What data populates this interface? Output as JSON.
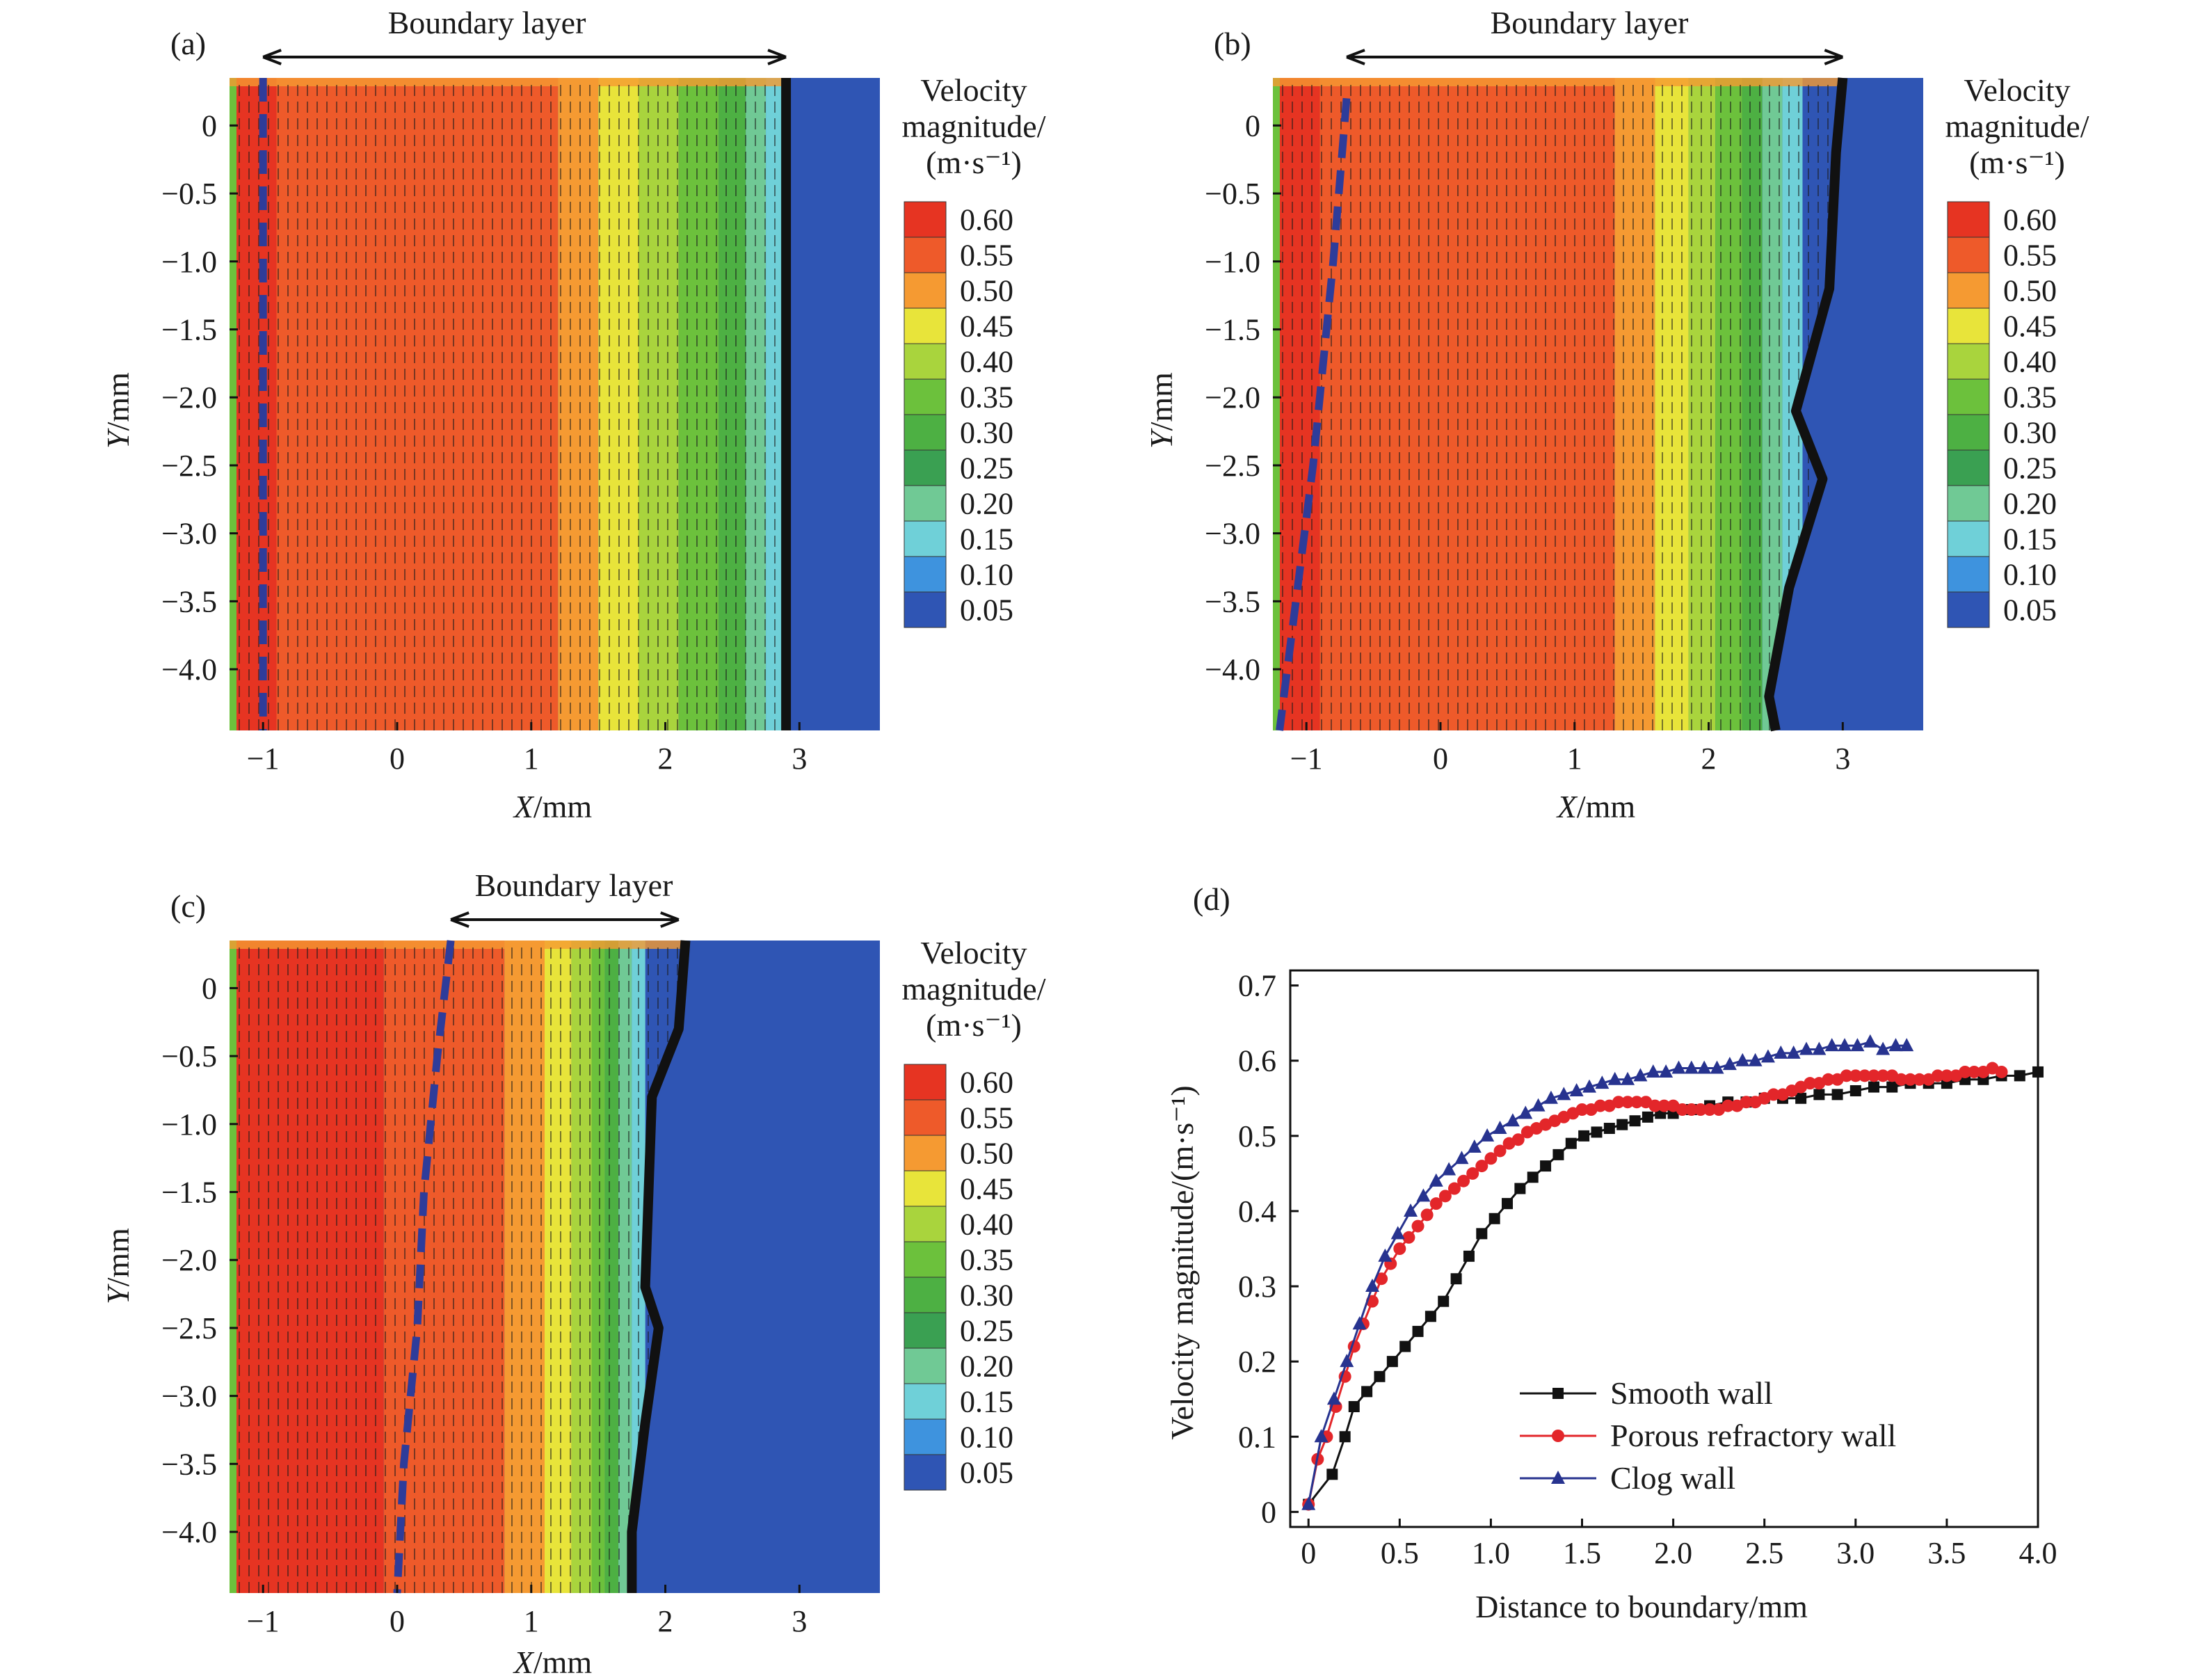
{
  "colorbar": {
    "title_lines": [
      "Velocity",
      "magnitude/",
      "(m·s⁻¹)"
    ],
    "levels": [
      "0.60",
      "0.55",
      "0.50",
      "0.45",
      "0.40",
      "0.35",
      "0.30",
      "0.25",
      "0.20",
      "0.15",
      "0.10",
      "0.05"
    ],
    "colors": [
      "#e63422",
      "#ee5a2a",
      "#f59a32",
      "#e8e43a",
      "#a9d43d",
      "#6cc13c",
      "#4db043",
      "#3aa052",
      "#70c995",
      "#6fd0d8",
      "#3e93de",
      "#2f55b4"
    ]
  },
  "contour_panels": [
    {
      "label": "(a)",
      "boundary_label": "Boundary layer",
      "xlabel_italic": "X",
      "xlabel_rest": "/mm",
      "ylabel_italic": "Y",
      "ylabel_rest": "/mm",
      "xticks": [
        -1,
        0,
        1,
        2,
        3
      ],
      "yticks": [
        0,
        -0.5,
        -1.0,
        -1.5,
        -2.0,
        -2.5,
        -3.0,
        -3.5,
        -4.0
      ],
      "xtick_labels": [
        "−1",
        "0",
        "1",
        "2",
        "3"
      ],
      "ytick_labels": [
        "0",
        "−0.5",
        "−1.0",
        "−1.5",
        "−2.0",
        "−2.5",
        "−3.0",
        "−3.5",
        "−4.0"
      ],
      "xlim": [
        -1.25,
        3.6
      ],
      "ylim": [
        -4.45,
        0.35
      ],
      "arrow_range": [
        -1.0,
        2.9
      ],
      "boundary_line": [
        [
          2.9,
          0.35
        ],
        [
          2.9,
          -4.45
        ]
      ],
      "inner_dashed_line": [
        [
          -1.0,
          0.35
        ],
        [
          -1.0,
          -4.45
        ]
      ],
      "color_zones": [
        {
          "x_end": -0.9,
          "color": "#e63422"
        },
        {
          "x_end": 1.2,
          "color": "#ee5a2a"
        },
        {
          "x_end": 1.5,
          "color": "#f59a32"
        },
        {
          "x_end": 1.8,
          "color": "#e8e43a"
        },
        {
          "x_end": 2.1,
          "color": "#a9d43d"
        },
        {
          "x_end": 2.4,
          "color": "#6cc13c"
        },
        {
          "x_end": 2.6,
          "color": "#4db043"
        },
        {
          "x_end": 2.75,
          "color": "#70c995"
        },
        {
          "x_end": 2.9,
          "color": "#6fd0d8"
        }
      ]
    },
    {
      "label": "(b)",
      "boundary_label": "Boundary layer",
      "xlabel_italic": "X",
      "xlabel_rest": "/mm",
      "ylabel_italic": "Y",
      "ylabel_rest": "/mm",
      "xticks": [
        -1,
        0,
        1,
        2,
        3
      ],
      "yticks": [
        0,
        -0.5,
        -1.0,
        -1.5,
        -2.0,
        -2.5,
        -3.0,
        -3.5,
        -4.0
      ],
      "xtick_labels": [
        "−1",
        "0",
        "1",
        "2",
        "3"
      ],
      "ytick_labels": [
        "0",
        "−0.5",
        "−1.0",
        "−1.5",
        "−2.0",
        "−2.5",
        "−3.0",
        "−3.5",
        "−4.0"
      ],
      "xlim": [
        -1.25,
        3.6
      ],
      "ylim": [
        -4.45,
        0.35
      ],
      "arrow_range": [
        -0.7,
        3.0
      ],
      "boundary_line": [
        [
          3.0,
          0.35
        ],
        [
          2.95,
          -0.2
        ],
        [
          2.9,
          -1.2
        ],
        [
          2.65,
          -2.1
        ],
        [
          2.85,
          -2.6
        ],
        [
          2.6,
          -3.4
        ],
        [
          2.45,
          -4.2
        ],
        [
          2.5,
          -4.45
        ]
      ],
      "inner_dashed_line": [
        [
          -0.7,
          0.2
        ],
        [
          -0.8,
          -1.0
        ],
        [
          -0.95,
          -2.5
        ],
        [
          -1.2,
          -4.45
        ]
      ],
      "color_zones": [
        {
          "x_end": -0.9,
          "color": "#e63422"
        },
        {
          "x_end": 1.3,
          "color": "#ee5a2a"
        },
        {
          "x_end": 1.6,
          "color": "#f59a32"
        },
        {
          "x_end": 1.85,
          "color": "#e8e43a"
        },
        {
          "x_end": 2.05,
          "color": "#a9d43d"
        },
        {
          "x_end": 2.25,
          "color": "#6cc13c"
        },
        {
          "x_end": 2.4,
          "color": "#4db043"
        },
        {
          "x_end": 2.55,
          "color": "#70c995"
        },
        {
          "x_end": 2.7,
          "color": "#6fd0d8"
        }
      ]
    },
    {
      "label": "(c)",
      "boundary_label": "Boundary layer",
      "xlabel_italic": "X",
      "xlabel_rest": "/mm",
      "ylabel_italic": "Y",
      "ylabel_rest": "/mm",
      "xticks": [
        -1,
        0,
        1,
        2,
        3
      ],
      "yticks": [
        0,
        -0.5,
        -1.0,
        -1.5,
        -2.0,
        -2.5,
        -3.0,
        -3.5,
        -4.0
      ],
      "xtick_labels": [
        "−1",
        "0",
        "1",
        "2",
        "3"
      ],
      "ytick_labels": [
        "0",
        "−0.5",
        "−1.0",
        "−1.5",
        "−2.0",
        "−2.5",
        "−3.0",
        "−3.5",
        "−4.0"
      ],
      "xlim": [
        -1.25,
        3.6
      ],
      "ylim": [
        -4.45,
        0.35
      ],
      "arrow_range": [
        0.4,
        2.1
      ],
      "boundary_line": [
        [
          2.15,
          0.35
        ],
        [
          2.1,
          -0.3
        ],
        [
          1.9,
          -0.8
        ],
        [
          1.85,
          -2.2
        ],
        [
          1.95,
          -2.5
        ],
        [
          1.85,
          -3.2
        ],
        [
          1.75,
          -4.0
        ],
        [
          1.75,
          -4.45
        ]
      ],
      "inner_dashed_line": [
        [
          0.4,
          0.35
        ],
        [
          0.3,
          -0.5
        ],
        [
          0.2,
          -1.5
        ],
        [
          0.15,
          -2.5
        ],
        [
          0.05,
          -3.5
        ],
        [
          0.0,
          -4.45
        ]
      ],
      "color_zones": [
        {
          "x_end": -0.1,
          "color": "#e63422"
        },
        {
          "x_end": 0.8,
          "color": "#ee5a2a"
        },
        {
          "x_end": 1.1,
          "color": "#f59a32"
        },
        {
          "x_end": 1.3,
          "color": "#e8e43a"
        },
        {
          "x_end": 1.45,
          "color": "#a9d43d"
        },
        {
          "x_end": 1.55,
          "color": "#6cc13c"
        },
        {
          "x_end": 1.65,
          "color": "#4db043"
        },
        {
          "x_end": 1.75,
          "color": "#70c995"
        },
        {
          "x_end": 1.85,
          "color": "#6fd0d8"
        }
      ]
    }
  ],
  "chart_data": {
    "type": "line",
    "label": "(d)",
    "xlabel": "Distance to boundary/mm",
    "ylabel": "Velocity magnitude/(m·s⁻¹)",
    "xlim": [
      -0.1,
      4.0
    ],
    "ylim": [
      -0.02,
      0.72
    ],
    "xticks": [
      0,
      0.5,
      1.0,
      1.5,
      2.0,
      2.5,
      3.0,
      3.5,
      4.0
    ],
    "xtick_labels": [
      "0",
      "0.5",
      "1.0",
      "1.5",
      "2.0",
      "2.5",
      "3.0",
      "3.5",
      "4.0"
    ],
    "yticks": [
      0,
      0.1,
      0.2,
      0.3,
      0.4,
      0.5,
      0.6,
      0.7
    ],
    "ytick_labels": [
      "0",
      "0.1",
      "0.2",
      "0.3",
      "0.4",
      "0.5",
      "0.6",
      "0.7"
    ],
    "legend_position": "bottom-left",
    "series": [
      {
        "name": "Smooth wall",
        "color": "#111111",
        "marker": "square",
        "x": [
          0,
          0.13,
          0.2,
          0.25,
          0.32,
          0.39,
          0.46,
          0.53,
          0.6,
          0.67,
          0.74,
          0.81,
          0.88,
          0.95,
          1.02,
          1.09,
          1.16,
          1.23,
          1.3,
          1.37,
          1.44,
          1.51,
          1.58,
          1.65,
          1.72,
          1.79,
          1.86,
          1.93,
          2.0,
          2.1,
          2.2,
          2.3,
          2.4,
          2.5,
          2.6,
          2.7,
          2.8,
          2.9,
          3.0,
          3.1,
          3.2,
          3.3,
          3.4,
          3.5,
          3.6,
          3.7,
          3.8,
          3.9,
          4.0
        ],
        "y": [
          0.01,
          0.05,
          0.1,
          0.14,
          0.16,
          0.18,
          0.2,
          0.22,
          0.24,
          0.26,
          0.28,
          0.31,
          0.34,
          0.37,
          0.39,
          0.41,
          0.43,
          0.445,
          0.46,
          0.475,
          0.49,
          0.5,
          0.505,
          0.51,
          0.515,
          0.52,
          0.525,
          0.53,
          0.53,
          0.535,
          0.54,
          0.545,
          0.545,
          0.55,
          0.55,
          0.55,
          0.555,
          0.555,
          0.56,
          0.565,
          0.565,
          0.57,
          0.57,
          0.57,
          0.575,
          0.575,
          0.58,
          0.58,
          0.585
        ]
      },
      {
        "name": "Porous refractory wall",
        "color": "#e3262a",
        "marker": "circle",
        "x": [
          0,
          0.05,
          0.1,
          0.15,
          0.2,
          0.25,
          0.3,
          0.35,
          0.4,
          0.45,
          0.5,
          0.55,
          0.6,
          0.65,
          0.7,
          0.75,
          0.8,
          0.85,
          0.9,
          0.95,
          1.0,
          1.05,
          1.1,
          1.15,
          1.2,
          1.25,
          1.3,
          1.35,
          1.4,
          1.45,
          1.5,
          1.55,
          1.6,
          1.65,
          1.7,
          1.75,
          1.8,
          1.85,
          1.9,
          1.95,
          2.0,
          2.05,
          2.1,
          2.15,
          2.2,
          2.25,
          2.3,
          2.35,
          2.4,
          2.45,
          2.5,
          2.55,
          2.6,
          2.65,
          2.7,
          2.75,
          2.8,
          2.85,
          2.9,
          2.95,
          3.0,
          3.05,
          3.1,
          3.15,
          3.2,
          3.25,
          3.3,
          3.35,
          3.4,
          3.45,
          3.5,
          3.55,
          3.6,
          3.65,
          3.7,
          3.75,
          3.8
        ],
        "y": [
          0.01,
          0.07,
          0.1,
          0.14,
          0.18,
          0.22,
          0.25,
          0.28,
          0.31,
          0.33,
          0.35,
          0.365,
          0.38,
          0.395,
          0.41,
          0.42,
          0.43,
          0.44,
          0.45,
          0.46,
          0.47,
          0.48,
          0.49,
          0.495,
          0.505,
          0.51,
          0.515,
          0.52,
          0.525,
          0.53,
          0.535,
          0.535,
          0.54,
          0.54,
          0.545,
          0.545,
          0.545,
          0.545,
          0.54,
          0.54,
          0.54,
          0.535,
          0.535,
          0.535,
          0.535,
          0.535,
          0.54,
          0.54,
          0.545,
          0.545,
          0.55,
          0.555,
          0.555,
          0.56,
          0.565,
          0.57,
          0.57,
          0.575,
          0.575,
          0.58,
          0.58,
          0.58,
          0.58,
          0.58,
          0.58,
          0.575,
          0.575,
          0.575,
          0.575,
          0.58,
          0.58,
          0.58,
          0.585,
          0.585,
          0.585,
          0.59,
          0.585
        ]
      },
      {
        "name": "Clog wall",
        "color": "#27338f",
        "marker": "triangle",
        "x": [
          0,
          0.07,
          0.14,
          0.21,
          0.28,
          0.35,
          0.42,
          0.49,
          0.56,
          0.63,
          0.7,
          0.77,
          0.84,
          0.91,
          0.98,
          1.05,
          1.12,
          1.19,
          1.26,
          1.33,
          1.4,
          1.47,
          1.54,
          1.61,
          1.68,
          1.75,
          1.82,
          1.89,
          1.96,
          2.03,
          2.1,
          2.17,
          2.24,
          2.31,
          2.38,
          2.45,
          2.52,
          2.59,
          2.66,
          2.73,
          2.8,
          2.87,
          2.94,
          3.01,
          3.08,
          3.15,
          3.22,
          3.28
        ],
        "y": [
          0.01,
          0.1,
          0.15,
          0.2,
          0.25,
          0.3,
          0.34,
          0.37,
          0.4,
          0.42,
          0.44,
          0.455,
          0.47,
          0.485,
          0.5,
          0.51,
          0.52,
          0.53,
          0.54,
          0.55,
          0.555,
          0.56,
          0.565,
          0.57,
          0.575,
          0.575,
          0.58,
          0.585,
          0.585,
          0.59,
          0.59,
          0.59,
          0.59,
          0.595,
          0.6,
          0.6,
          0.605,
          0.61,
          0.61,
          0.615,
          0.615,
          0.62,
          0.62,
          0.62,
          0.625,
          0.615,
          0.62,
          0.62
        ]
      }
    ]
  }
}
